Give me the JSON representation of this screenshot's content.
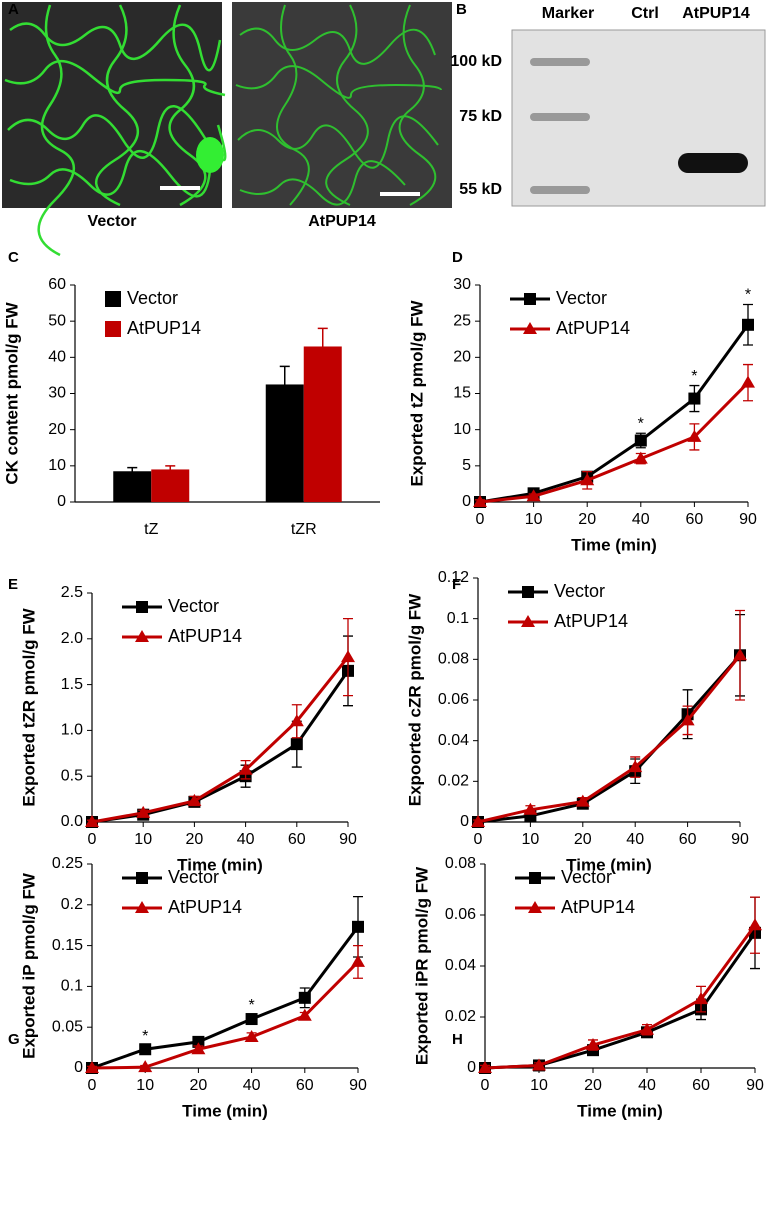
{
  "figure": {
    "panel_a": {
      "label": "A",
      "captions": [
        "Vector",
        "AtPUP14"
      ]
    },
    "panel_b": {
      "label": "B",
      "lanes": [
        "Marker",
        "Ctrl",
        "AtPUP14"
      ],
      "markers": [
        "100 kD",
        "75 kD",
        "55 kD"
      ]
    }
  },
  "chart_data": [
    {
      "type": "bar",
      "label": "C",
      "ylabel": "CK content pmol/g FW",
      "categories": [
        "tZ",
        "tZR"
      ],
      "series": [
        {
          "name": "Vector",
          "color": "#000000",
          "values": [
            8.5,
            32.5
          ],
          "errors": [
            1,
            5
          ]
        },
        {
          "name": "AtPUP14",
          "color": "#c00000",
          "values": [
            9,
            43
          ],
          "errors": [
            1,
            5
          ]
        }
      ],
      "ylim": [
        0,
        60
      ],
      "yticks": [
        0,
        10,
        20,
        30,
        40,
        50,
        60
      ],
      "legend": "upper left"
    },
    {
      "type": "line",
      "label": "D",
      "ylabel": "Exported tZ  pmol/g FW",
      "xlabel": "Time (min)",
      "categories": [
        0,
        10,
        20,
        40,
        60,
        90
      ],
      "series": [
        {
          "name": "Vector",
          "color": "#000000",
          "marker": "square",
          "values": [
            0,
            1.2,
            3.5,
            8.5,
            14.3,
            24.5
          ],
          "errors": [
            0.3,
            0.3,
            0.5,
            1,
            1.8,
            2.8
          ]
        },
        {
          "name": "AtPUP14",
          "color": "#c00000",
          "marker": "triangle",
          "values": [
            0,
            0.8,
            3,
            6,
            9,
            16.5
          ],
          "errors": [
            0.3,
            0.3,
            1.2,
            0.7,
            1.8,
            2.5
          ]
        }
      ],
      "ylim": [
        0,
        30
      ],
      "yticks": [
        0,
        5,
        10,
        15,
        20,
        25,
        30
      ],
      "legend": "upper left",
      "annotations": [
        {
          "text": "*",
          "x": 40
        },
        {
          "text": "*",
          "x": 60
        },
        {
          "text": "*",
          "x": 90
        }
      ]
    },
    {
      "type": "line",
      "label": "E",
      "ylabel": "Exported tZR  pmol/g FW",
      "xlabel": "Time (min)",
      "categories": [
        0,
        10,
        20,
        40,
        60,
        90
      ],
      "series": [
        {
          "name": "Vector",
          "color": "#000000",
          "marker": "square",
          "values": [
            0,
            0.08,
            0.22,
            0.5,
            0.85,
            1.65
          ],
          "errors": [
            0.02,
            0.03,
            0.05,
            0.12,
            0.25,
            0.38
          ]
        },
        {
          "name": "AtPUP14",
          "color": "#c00000",
          "marker": "triangle",
          "values": [
            0,
            0.1,
            0.23,
            0.57,
            1.1,
            1.8
          ],
          "errors": [
            0.02,
            0.03,
            0.05,
            0.1,
            0.18,
            0.42
          ]
        }
      ],
      "ylim": [
        0,
        2.5
      ],
      "yticks": [
        {
          "value": 0,
          "label": "0.0"
        },
        {
          "value": 0.5,
          "label": "0.5"
        },
        {
          "value": 1,
          "label": "1.0"
        },
        {
          "value": 1.5,
          "label": "1.5"
        },
        {
          "value": 2,
          "label": "2.0"
        },
        {
          "value": 2.5,
          "label": "2.5"
        }
      ],
      "legend": "upper left"
    },
    {
      "type": "line",
      "label": "F",
      "ylabel": "Expoorted cZR  pmol/g FW",
      "xlabel": "Time (min)",
      "categories": [
        0,
        10,
        20,
        40,
        60,
        90
      ],
      "series": [
        {
          "name": "Vector",
          "color": "#000000",
          "marker": "square",
          "values": [
            0,
            0.003,
            0.009,
            0.025,
            0.053,
            0.082
          ],
          "errors": [
            0.001,
            0.002,
            0.002,
            0.006,
            0.012,
            0.02
          ]
        },
        {
          "name": "AtPUP14",
          "color": "#c00000",
          "marker": "triangle",
          "values": [
            0,
            0.006,
            0.01,
            0.027,
            0.05,
            0.082
          ],
          "errors": [
            0.001,
            0.002,
            0.002,
            0.005,
            0.007,
            0.022
          ]
        }
      ],
      "ylim": [
        0,
        0.12
      ],
      "yticks": [
        0,
        0.02,
        0.04,
        0.06,
        0.08,
        0.1,
        0.12
      ],
      "legend": "upper left"
    },
    {
      "type": "line",
      "label": "G",
      "ylabel": "Exported iP pmol/g FW",
      "xlabel": "Time (min)",
      "categories": [
        0,
        10,
        20,
        40,
        60,
        90
      ],
      "series": [
        {
          "name": "Vector",
          "color": "#000000",
          "marker": "square",
          "values": [
            0,
            0.023,
            0.032,
            0.06,
            0.086,
            0.173
          ],
          "errors": [
            0.002,
            0.004,
            0.004,
            0.005,
            0.012,
            0.037
          ]
        },
        {
          "name": "AtPUP14",
          "color": "#c00000",
          "marker": "triangle",
          "values": [
            0,
            0.001,
            0.023,
            0.038,
            0.064,
            0.13
          ],
          "errors": [
            0.002,
            0.002,
            0.004,
            0.005,
            0.004,
            0.02
          ]
        }
      ],
      "ylim": [
        0,
        0.25
      ],
      "yticks": [
        0,
        0.05,
        0.1,
        0.15,
        0.2,
        0.25
      ],
      "legend": "upper left",
      "annotations": [
        {
          "text": "*",
          "x": 10
        },
        {
          "text": "*",
          "x": 40
        }
      ]
    },
    {
      "type": "line",
      "label": "H",
      "ylabel": "Exported iPR pmol/g FW",
      "xlabel": "Time (min)",
      "categories": [
        0,
        10,
        20,
        40,
        60,
        90
      ],
      "series": [
        {
          "name": "Vector",
          "color": "#000000",
          "marker": "square",
          "values": [
            0,
            0.001,
            0.007,
            0.014,
            0.023,
            0.053
          ],
          "errors": [
            0.001,
            0.001,
            0.001,
            0.002,
            0.004,
            0.014
          ]
        },
        {
          "name": "AtPUP14",
          "color": "#c00000",
          "marker": "triangle",
          "values": [
            0,
            0.001,
            0.009,
            0.015,
            0.027,
            0.056
          ],
          "errors": [
            0.001,
            0.001,
            0.002,
            0.002,
            0.005,
            0.011
          ]
        }
      ],
      "ylim": [
        0,
        0.08
      ],
      "yticks": [
        0,
        0.02,
        0.04,
        0.06,
        0.08
      ],
      "legend": "upper left"
    }
  ]
}
